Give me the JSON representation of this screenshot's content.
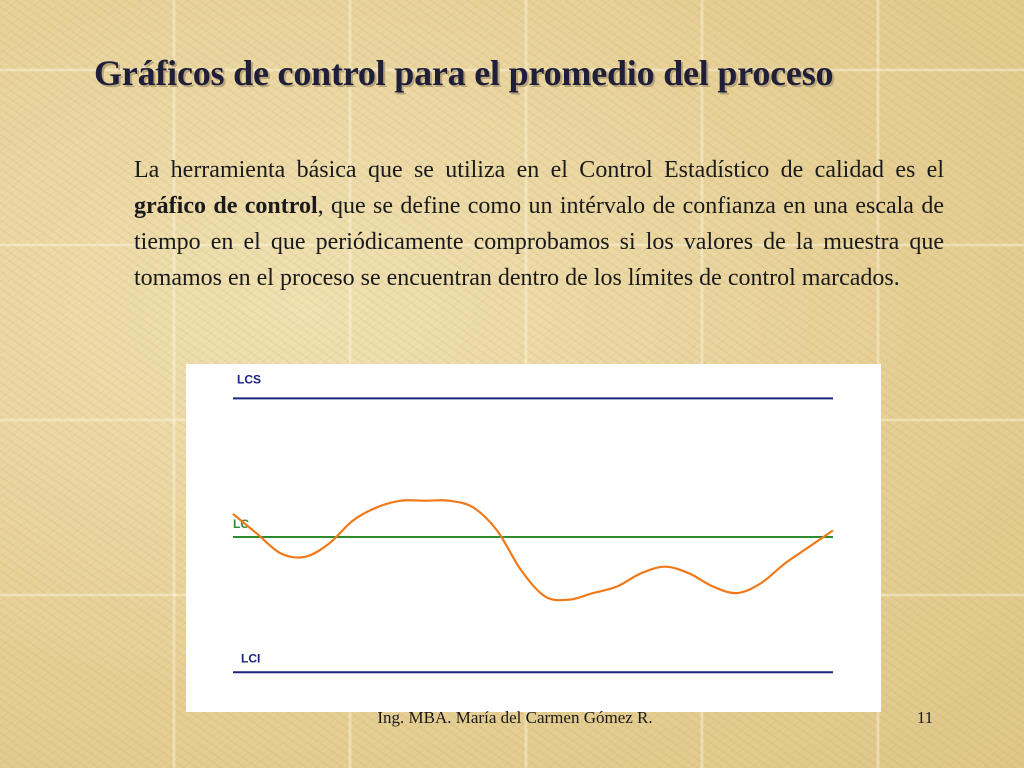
{
  "slide": {
    "title": "Gráficos de control para el promedio del proceso",
    "paragraph": {
      "before": "La herramienta básica que se utiliza en el Control Estadístico de calidad es el ",
      "bold": "gráfico de control",
      "after": ", que se define como un intérvalo de confianza en una escala de tiempo en el que periódicamente comprobamos si los valores de la muestra que tomamos en el proceso se encuentran dentro de los límites de control marcados."
    },
    "footer": {
      "author": "Ing. MBA. María del Carmen Gómez R.",
      "page_number": "11"
    }
  },
  "chart_data": {
    "type": "line",
    "title": "",
    "xlabel": "",
    "ylabel": "",
    "ylim": [
      0,
      100
    ],
    "xlim": [
      0,
      100
    ],
    "reference_lines": [
      {
        "label": "LCS",
        "y": 92,
        "color": "#1a237e"
      },
      {
        "label": "LC",
        "y": 50,
        "color": "#2e8b2e"
      },
      {
        "label": "LCI",
        "y": 9,
        "color": "#1a237e"
      }
    ],
    "series": [
      {
        "color": "#f07a1a",
        "x": [
          0,
          4,
          8,
          12,
          16,
          20,
          24,
          28,
          32,
          36,
          40,
          44,
          48,
          52,
          56,
          60,
          64,
          68,
          72,
          76,
          80,
          84,
          88,
          92,
          96,
          100
        ],
        "y": [
          57,
          51,
          45,
          44,
          48,
          55,
          59,
          61,
          61,
          61,
          59,
          52,
          40,
          32,
          31,
          33,
          35,
          39,
          41,
          39,
          35,
          33,
          36,
          42,
          47,
          52
        ]
      }
    ]
  }
}
